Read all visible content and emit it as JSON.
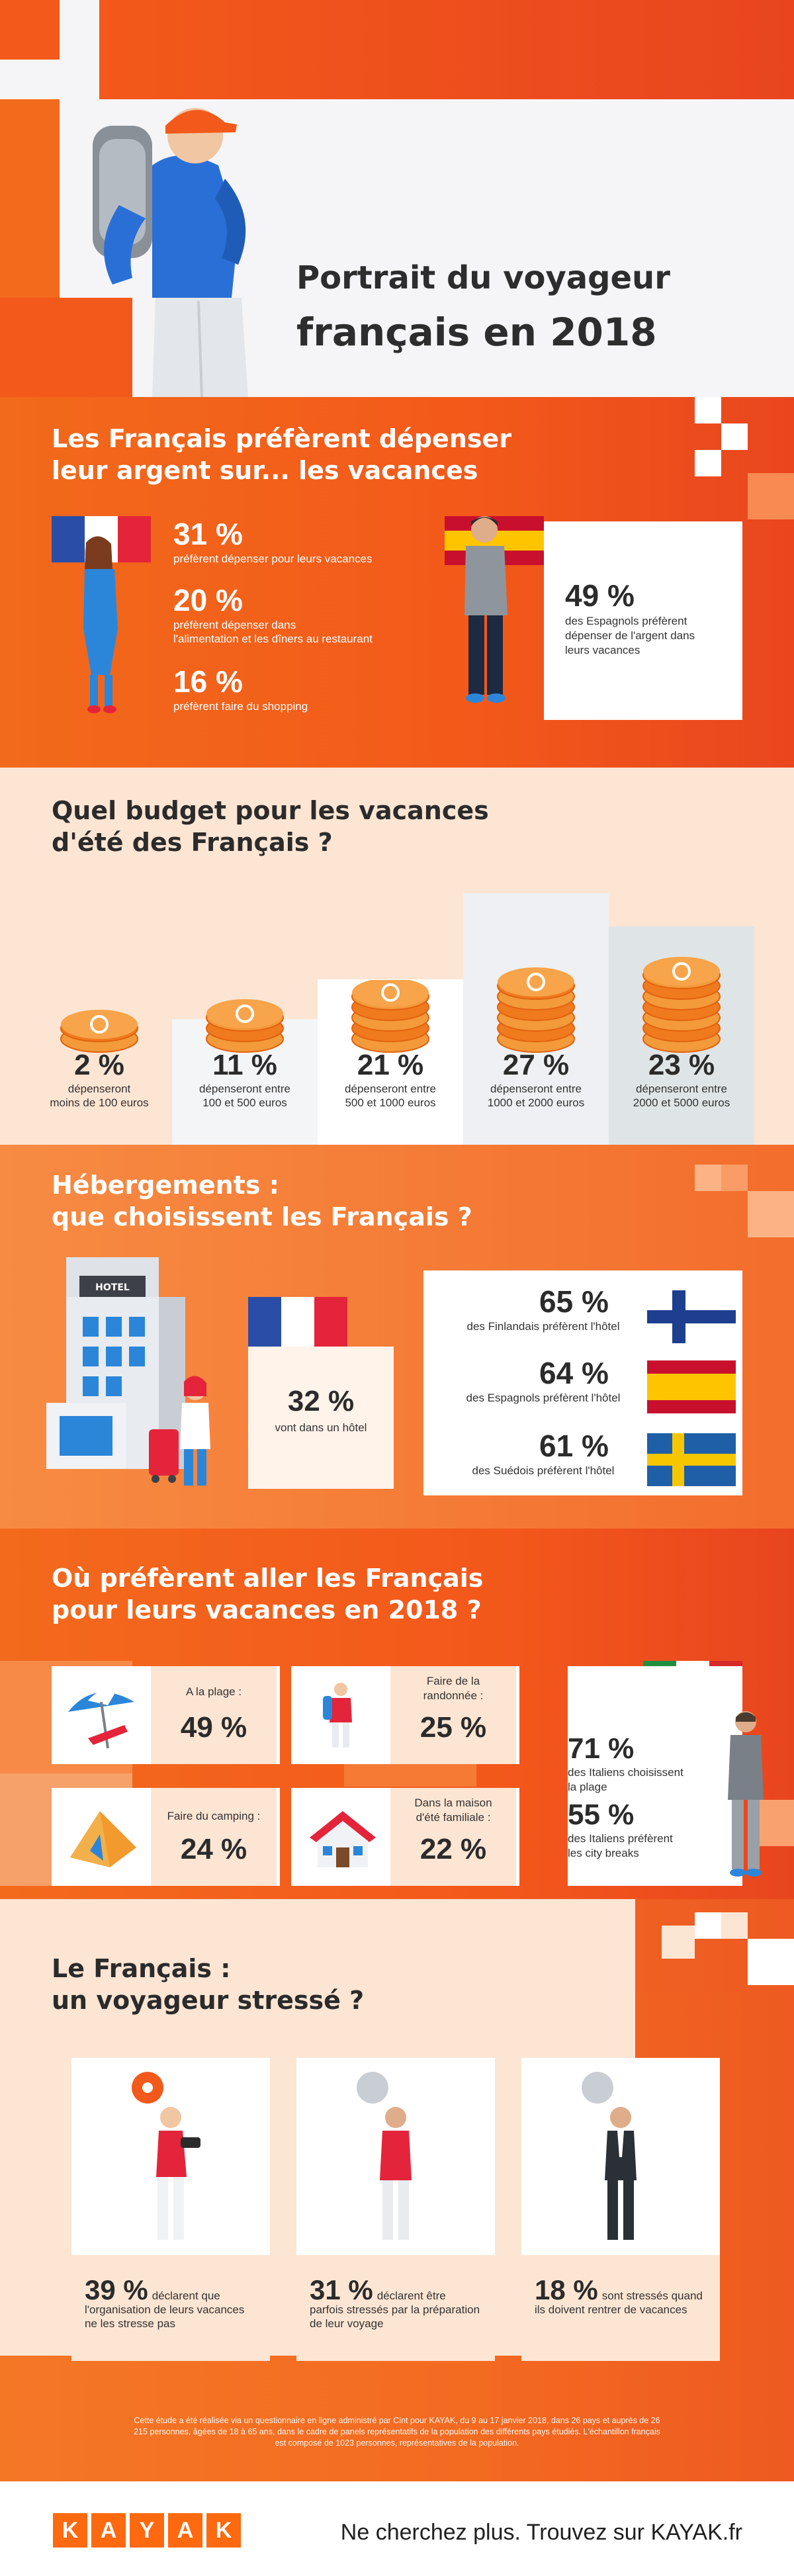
{
  "header": {
    "title_line1": "Portrait du voyageur",
    "title_line2": "français en 2018"
  },
  "spend": {
    "title_line1": "Les Français préfèrent dépenser",
    "title_line2": "leur argent sur... les vacances",
    "stats": [
      {
        "pct": "31 %",
        "text": "préfèrent dépenser pour leurs vacances"
      },
      {
        "pct": "20 %",
        "text_line1": "préfèrent dépenser dans",
        "text_line2": "l'alimentation et les dîners au restaurant"
      },
      {
        "pct": "16 %",
        "text": "préfèrent faire du shopping"
      }
    ],
    "spain": {
      "pct": "49 %",
      "text_line1": "des Espagnols préfèrent",
      "text_line2": "dépenser de l'argent dans",
      "text_line3": "leurs vacances"
    }
  },
  "budget": {
    "title_line1": "Quel budget pour les vacances",
    "title_line2": "d'été des Français ?",
    "items": [
      {
        "pct": "2 %",
        "line1": "dépenseront",
        "line2": "moins de 100 euros",
        "level": 1
      },
      {
        "pct": "11 %",
        "line1": "dépenseront entre",
        "line2": "100 et 500 euros",
        "level": 2
      },
      {
        "pct": "21 %",
        "line1": "dépenseront entre",
        "line2": "500 et 1000 euros",
        "level": 3
      },
      {
        "pct": "27 %",
        "line1": "dépenseront entre",
        "line2": "1000 et 2000 euros",
        "level": 4
      },
      {
        "pct": "23 %",
        "line1": "dépenseront entre",
        "line2": "2000 et 5000 euros",
        "level": 5
      }
    ]
  },
  "hotel": {
    "title_line1": "Hébergements :",
    "title_line2": "que choisissent les Français ?",
    "sign": "HOTEL",
    "france": {
      "pct": "32 %",
      "text": "vont dans un hôtel"
    },
    "others": [
      {
        "pct": "65 %",
        "text": "des Finlandais préfèrent l'hôtel"
      },
      {
        "pct": "64 %",
        "text": "des Espagnols préfèrent l'hôtel"
      },
      {
        "pct": "61 %",
        "text": "des Suédois préfèrent l'hôtel"
      }
    ]
  },
  "dest": {
    "title_line1": "Où préfèrent aller les Français",
    "title_line2": "pour leurs vacances en 2018 ?",
    "items": [
      {
        "label_line1": "A la plage :",
        "label_line2": "",
        "pct": "49 %"
      },
      {
        "label_line1": "Faire de la",
        "label_line2": "randonnée :",
        "pct": "25 %"
      },
      {
        "label_line1": "Faire du camping :",
        "label_line2": "",
        "pct": "24 %"
      },
      {
        "label_line1": "Dans la maison",
        "label_line2": "d'été familiale :",
        "pct": "22 %"
      }
    ],
    "italy": {
      "pct1": "71 %",
      "text1_line1": "des Italiens choisissent",
      "text1_line2": "la plage",
      "pct2": "55 %",
      "text2_line1": "des Italiens préfèrent",
      "text2_line2": "les city breaks"
    }
  },
  "stress": {
    "title_line1": "Le Français :",
    "title_line2": "un voyageur stressé ?",
    "cards": [
      {
        "pct": "39 %",
        "text": "déclarent que l'organisation de leurs vacances ne les stresse pas"
      },
      {
        "pct": "31 %",
        "text": "déclarent être parfois stressés par la préparation de leur voyage"
      },
      {
        "pct": "18 %",
        "text": "sont stressés quand ils doivent rentrer de vacances"
      }
    ],
    "note_line1": "Cette étude a été réalisée via un questionnaire en ligne administré par Cint pour KAYAK, du 9 au 17 janvier 2018, dans 26 pays et auprès de 26",
    "note_line2": "215 personnes, âgées de 18 à 65 ans, dans le cadre de panels représentatifs de la population des différents pays étudiés. L'échantillon français",
    "note_line3": "est composé de 1023 personnes, représentatives de la population."
  },
  "footer": {
    "logo_letters": [
      "K",
      "A",
      "Y",
      "A",
      "K"
    ],
    "tagline": "Ne cherchez plus. Trouvez sur KAYAK.fr"
  },
  "colors": {
    "orange": "#f3591a",
    "dark_orange": "#e8451f",
    "peach": "#fde5d3",
    "kayak": "#ff690f"
  }
}
